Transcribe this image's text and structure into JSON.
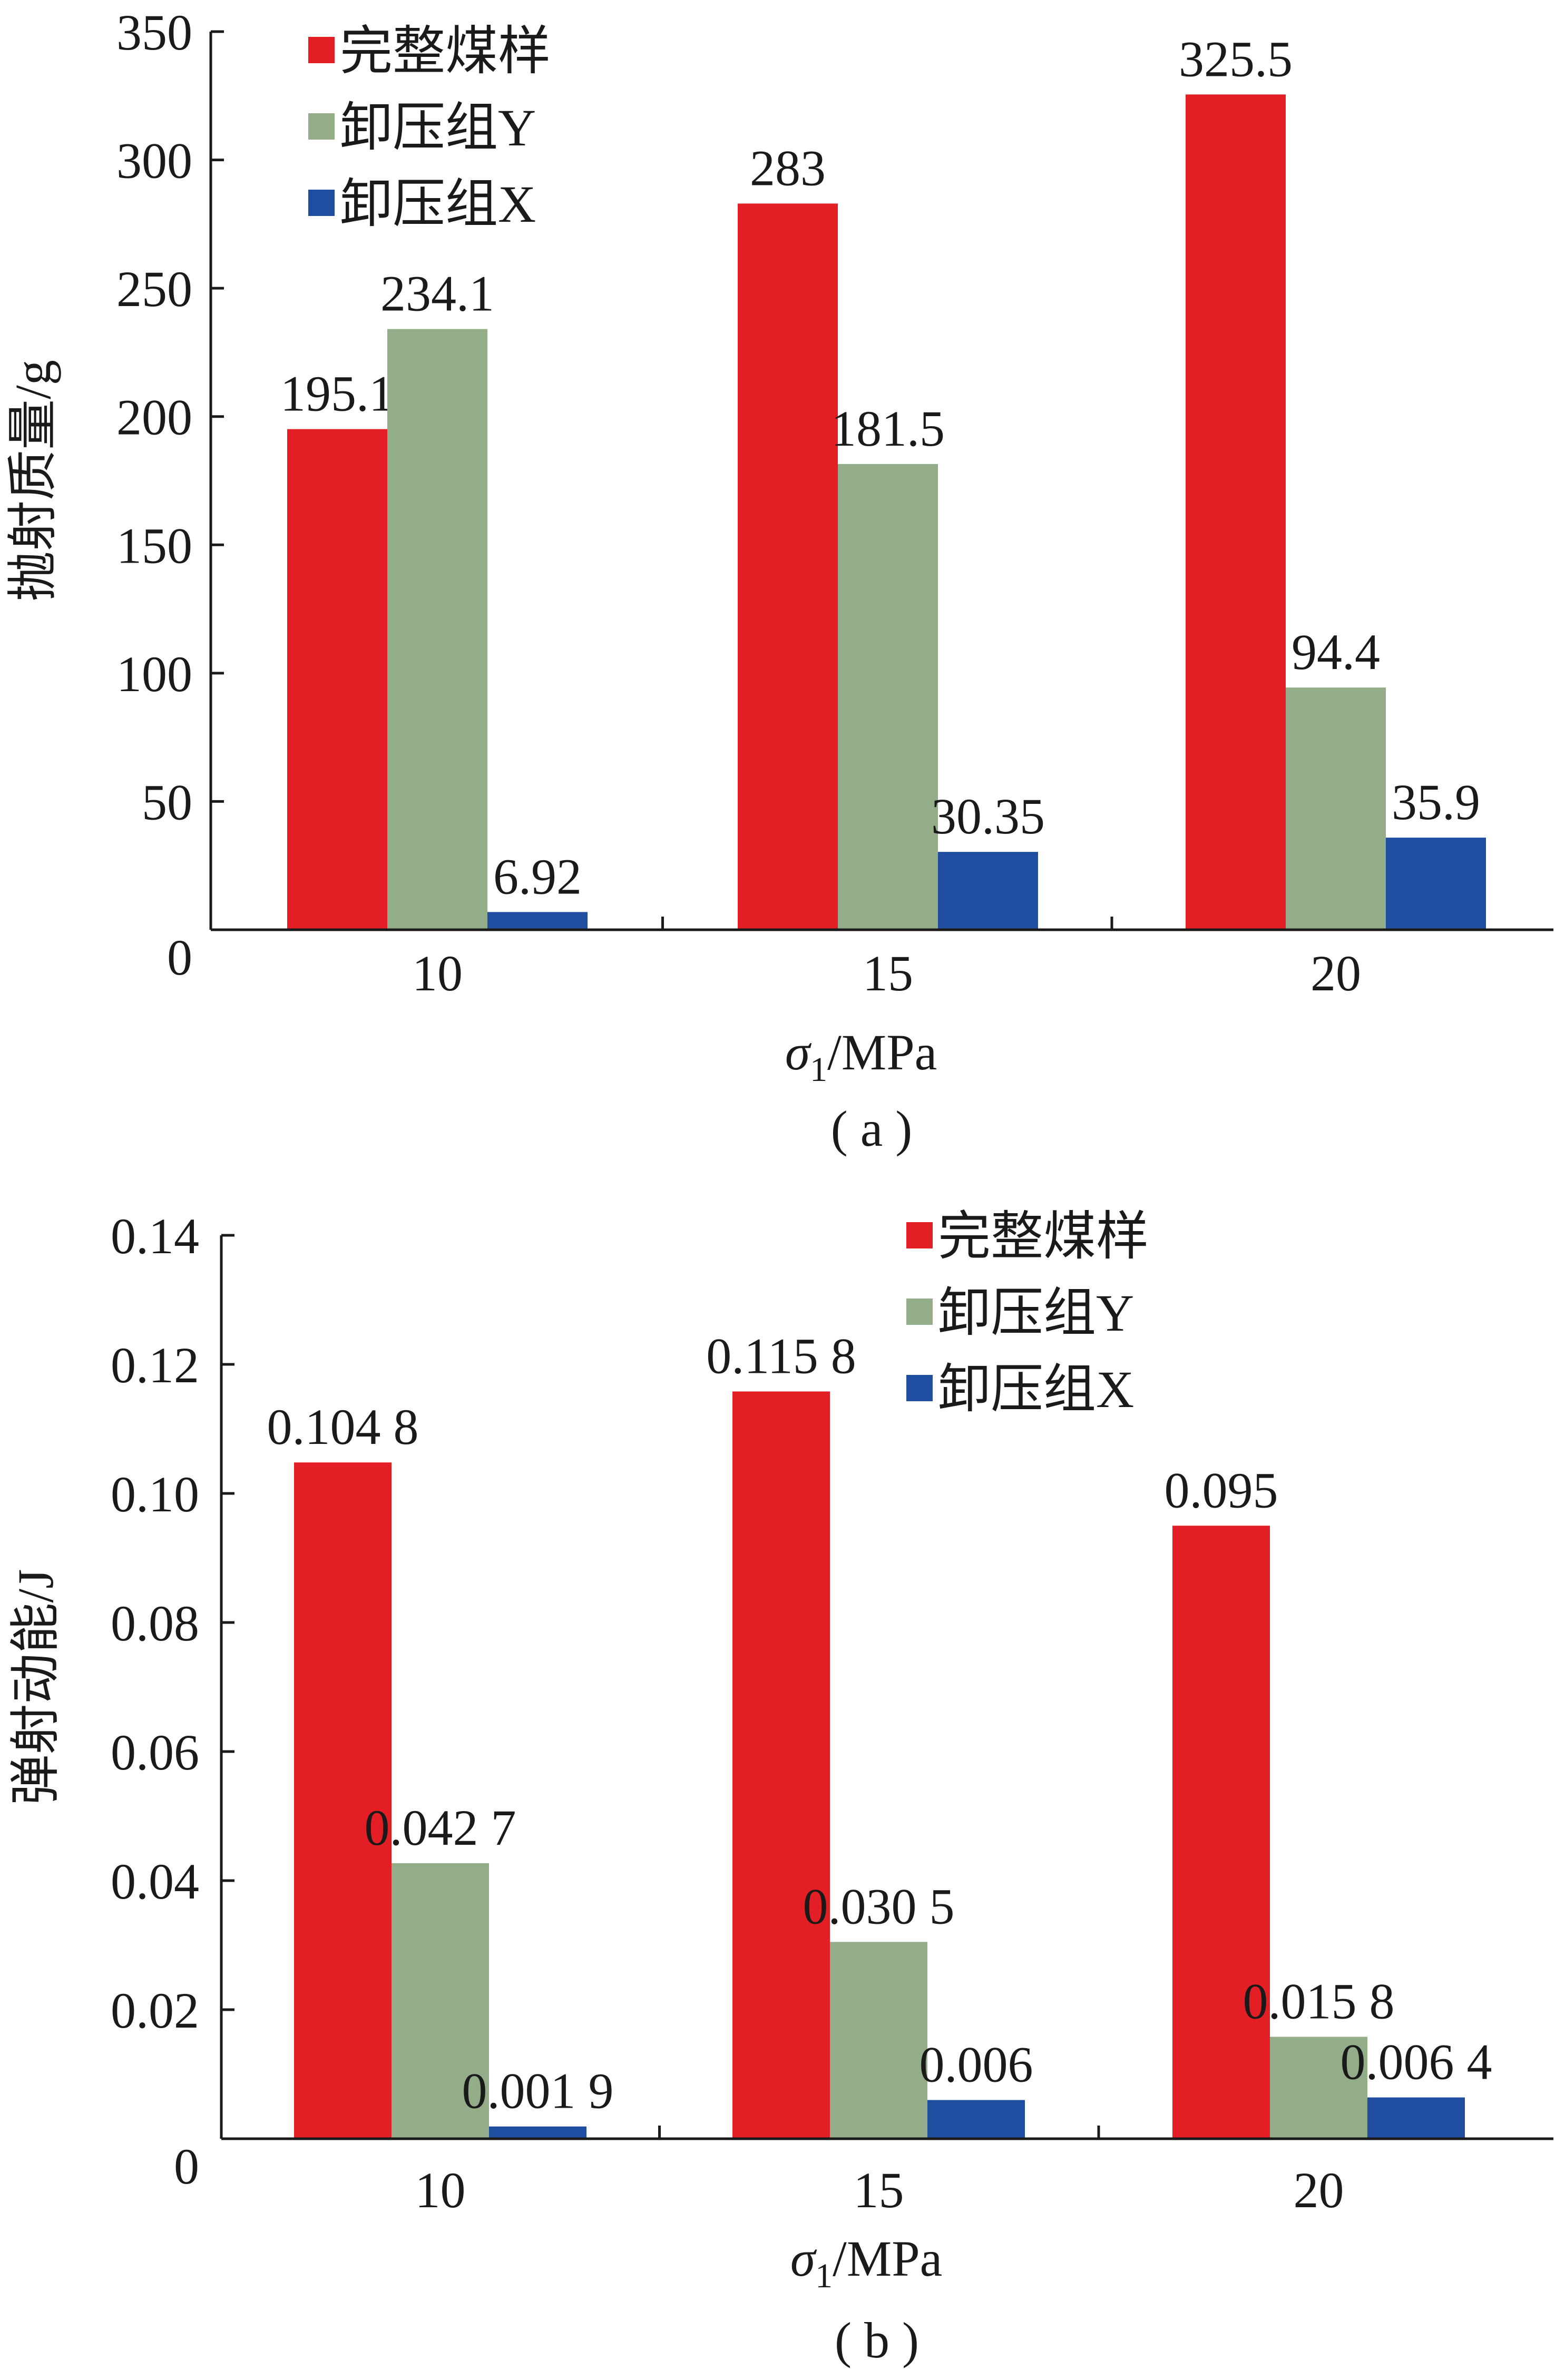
{
  "colors": {
    "red": "#e31e24",
    "green": "#93ad89",
    "blue": "#1f4ea1",
    "axis": "#1a1a1a"
  },
  "chart_data": [
    {
      "type": "bar",
      "caption": "( a )",
      "categories": [
        "10",
        "15",
        "20"
      ],
      "xlabel": "σ1/MPa",
      "xlabel_symbol": "σ",
      "xlabel_sub": "1",
      "xlabel_unit": "/MPa",
      "ylabel": "抛射质量/g",
      "ylim": [
        0,
        350
      ],
      "yticks": [
        "0",
        "50",
        "100",
        "150",
        "200",
        "250",
        "300",
        "350"
      ],
      "legend_position": "top-left",
      "series": [
        {
          "name": "完整煤样",
          "color": "#e31e24",
          "values": [
            195.1,
            283,
            325.5
          ],
          "labels": [
            "195.1",
            "283",
            "325.5"
          ]
        },
        {
          "name": "卸压组Y",
          "color": "#93ad89",
          "values": [
            234.1,
            181.5,
            94.4
          ],
          "labels": [
            "234.1",
            "181.5",
            "94.4"
          ]
        },
        {
          "name": "卸压组X",
          "color": "#1f4ea1",
          "values": [
            6.92,
            30.35,
            35.9
          ],
          "labels": [
            "6.92",
            "30.35",
            "35.9"
          ]
        }
      ]
    },
    {
      "type": "bar",
      "caption": "( b )",
      "categories": [
        "10",
        "15",
        "20"
      ],
      "xlabel": "σ1/MPa",
      "xlabel_symbol": "σ",
      "xlabel_sub": "1",
      "xlabel_unit": "/MPa",
      "ylabel": "弹射动能/J",
      "ylim": [
        0,
        0.14
      ],
      "yticks": [
        "0",
        "0.02",
        "0.04",
        "0.06",
        "0.08",
        "0.10",
        "0.12",
        "0.14"
      ],
      "legend_position": "top-right",
      "series": [
        {
          "name": "完整煤样",
          "color": "#e31e24",
          "values": [
            0.1048,
            0.1158,
            0.095
          ],
          "labels": [
            "0.104 8",
            "0.115 8",
            "0.095"
          ]
        },
        {
          "name": "卸压组Y",
          "color": "#93ad89",
          "values": [
            0.0427,
            0.0305,
            0.0158
          ],
          "labels": [
            "0.042 7",
            "0.030 5",
            "0.015 8"
          ]
        },
        {
          "name": "卸压组X",
          "color": "#1f4ea1",
          "values": [
            0.0019,
            0.006,
            0.0064
          ],
          "labels": [
            "0.001 9",
            "0.006",
            "0.006 4"
          ]
        }
      ]
    }
  ]
}
